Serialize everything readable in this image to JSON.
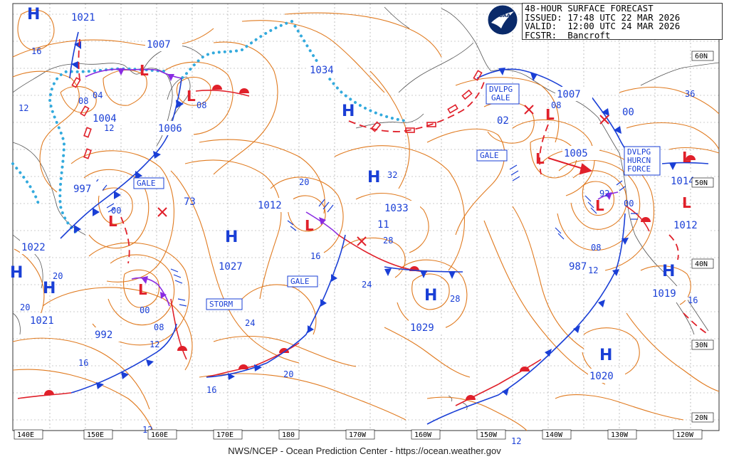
{
  "header": {
    "line1": "48-HOUR SURFACE FORECAST",
    "line2": "ISSUED: 17:48 UTC 22 MAR 2026",
    "line3": "VALID:  12:00 UTC 24 MAR 2026",
    "line4": "FCSTR:  Bancroft"
  },
  "footer": "NWS/NCEP - Ocean Prediction Center - https://ocean.weather.gov",
  "logo_text": "NOAA",
  "lon_labels": [
    "140E",
    "150E",
    "160E",
    "170E",
    "180",
    "170W",
    "160W",
    "150W",
    "140W",
    "130W",
    "120W"
  ],
  "lat_labels": [
    "60N",
    "50N",
    "40N",
    "30N",
    "20N"
  ],
  "highs": [
    {
      "id": "h1",
      "label": "H",
      "pressure": "1021"
    },
    {
      "id": "h2",
      "label": "H",
      "pressure": "1034"
    },
    {
      "id": "h3",
      "label": "H",
      "pressure": "1033"
    },
    {
      "id": "h4",
      "label": "H",
      "pressure": "1027"
    },
    {
      "id": "h5",
      "label": "H",
      "pressure": "1029"
    },
    {
      "id": "h6",
      "label": "H",
      "pressure": "1020"
    },
    {
      "id": "h7",
      "label": "H",
      "pressure": "1019"
    },
    {
      "id": "h8",
      "label": "H",
      "pressure": "1021"
    },
    {
      "id": "h9",
      "label": "H",
      "pressure": "1022"
    }
  ],
  "lows": [
    {
      "id": "l1",
      "pressure": "1007"
    },
    {
      "id": "l2",
      "pressure": "1004"
    },
    {
      "id": "l3",
      "pressure": "1006"
    },
    {
      "id": "l4",
      "pressure": "997"
    },
    {
      "id": "l5",
      "pressure": "992"
    },
    {
      "id": "l6",
      "pressure": "1012"
    },
    {
      "id": "l7",
      "pressure": "1007"
    },
    {
      "id": "l8",
      "pressure": "1005"
    },
    {
      "id": "l9",
      "pressure": "987"
    },
    {
      "id": "l10",
      "pressure": "1014"
    },
    {
      "id": "l11",
      "pressure": "1012"
    }
  ],
  "warnings": [
    "GALE",
    "STORM",
    "GALE",
    "GALE",
    "DVLPG GALE",
    "DVLPG HURCN FORCE"
  ],
  "warning_lines": {
    "dvlpg_gale": [
      "DVLPG",
      "GALE"
    ],
    "dvlpg_hurcn": [
      "DVLPG",
      "HURCN",
      "FORCE"
    ]
  },
  "isobar_labels": [
    "16",
    "12",
    "04",
    "08",
    "08",
    "12",
    "00",
    "00",
    "08",
    "12",
    "16",
    "20",
    "24",
    "20",
    "16",
    "73",
    "20",
    "16",
    "24",
    "28",
    "28",
    "32",
    "11",
    "02",
    "36",
    "00",
    "08",
    "00",
    "92",
    "08",
    "12",
    "16",
    "20",
    "12",
    "12"
  ]
}
